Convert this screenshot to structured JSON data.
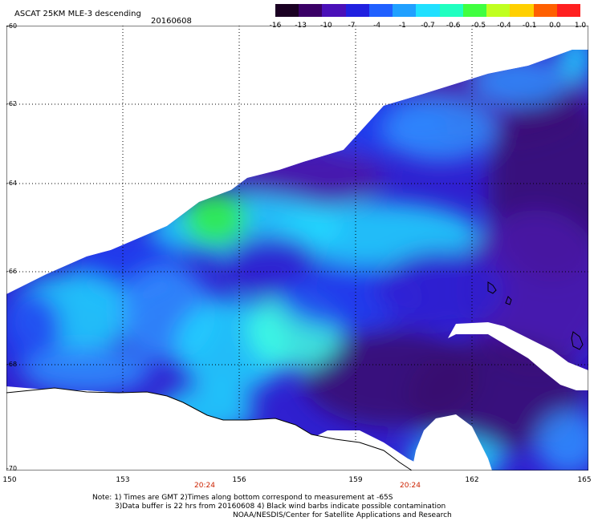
{
  "header": {
    "title": "ASCAT 25KM MLE-3 descending",
    "date": "20160608"
  },
  "colorbar": {
    "labels": [
      "-16",
      "-13",
      "-10",
      "-7",
      "-4",
      "-1",
      "-0.7",
      "-0.6",
      "-0.5",
      "-0.4",
      "-0.1",
      "0.0",
      "1.0"
    ],
    "colors": [
      "#1a0022",
      "#3a0066",
      "#4a10b8",
      "#2020e0",
      "#2060ff",
      "#20a0ff",
      "#20e0ff",
      "#20ffc0",
      "#40ff40",
      "#c0ff20",
      "#ffd000",
      "#ff6000",
      "#ff2020"
    ]
  },
  "map": {
    "lat_labels": [
      "-60",
      "-62",
      "-64",
      "-66",
      "-68",
      "-70"
    ],
    "lon_labels": [
      "150",
      "153",
      "156",
      "159",
      "162",
      "165"
    ],
    "time_labels": [
      "20:24",
      "20:24"
    ],
    "colors": {
      "deep_purple": "#3a0a6e",
      "purple": "#4a1aa8",
      "indigo": "#3020d0",
      "blue": "#2040f0",
      "light_blue": "#3090ff",
      "cyan": "#20d8ff",
      "aqua": "#40ffe0",
      "green": "#30f040",
      "land": "#ffffff"
    }
  },
  "footer": {
    "note_line1": "Note: 1) Times are GMT 2)Times along bottom correspond to measurement at -65S",
    "note_line2": "3)Data buffer is 22 hrs from 20160608 4) Black wind barbs indicate possible contamination",
    "credit": "NOAA/NESDIS/Center for Satellite Applications and Research"
  }
}
